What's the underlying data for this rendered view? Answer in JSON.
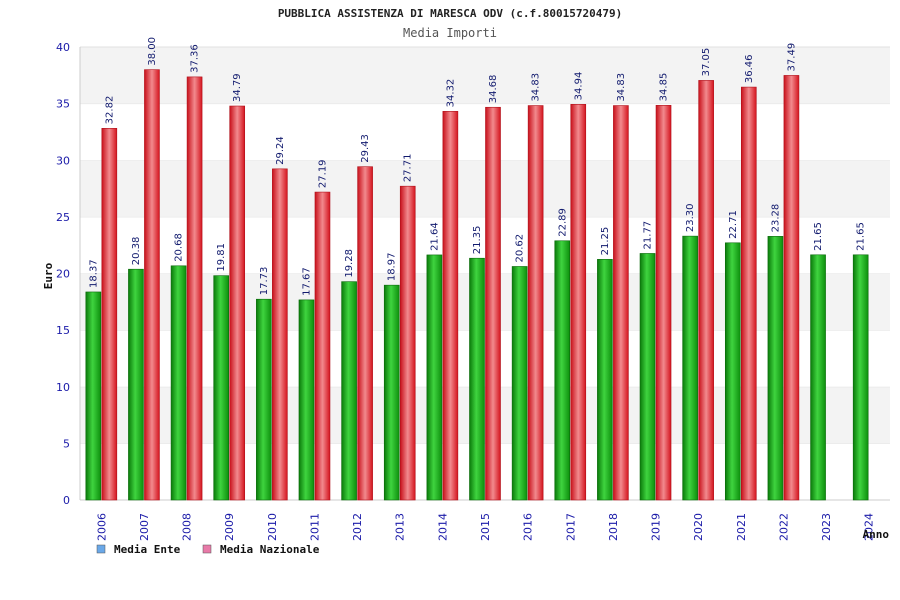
{
  "chart_data": {
    "type": "bar",
    "title": "PUBBLICA ASSISTENZA DI MARESCA ODV (c.f.80015720479)",
    "subtitle": "Media Importi",
    "xlabel": "Anno",
    "ylabel": "Euro",
    "ylim": [
      0,
      40
    ],
    "yticks": [
      "0",
      "5",
      "10",
      "15",
      "20",
      "25",
      "30",
      "35",
      "40"
    ],
    "grid": "horizontal bands",
    "legend_position": "bottom-left",
    "categories": [
      "2006",
      "2007",
      "2008",
      "2009",
      "2010",
      "2011",
      "2012",
      "2013",
      "2014",
      "2015",
      "2016",
      "2017",
      "2018",
      "2019",
      "2020",
      "2021",
      "2022",
      "2023",
      "2024"
    ],
    "series": [
      {
        "name": "Media Ente",
        "color": "#11a411",
        "legend_color": "#6aa8e8",
        "values": [
          18.37,
          20.38,
          20.68,
          19.81,
          17.73,
          17.67,
          19.28,
          18.97,
          21.64,
          21.35,
          20.62,
          22.89,
          21.25,
          21.77,
          23.3,
          22.71,
          23.28,
          21.65,
          21.65
        ],
        "labels": [
          "18.37",
          "20.38",
          "20.68",
          "19.81",
          "17.73",
          "17.67",
          "19.28",
          "18.97",
          "21.64",
          "21.35",
          "20.62",
          "22.89",
          "21.25",
          "21.77",
          "23.30",
          "22.71",
          "23.28",
          "21.65",
          "21.65"
        ]
      },
      {
        "name": "Media Nazionale",
        "color": "#e8202a",
        "legend_color": "#e87aa8",
        "values": [
          32.82,
          38.0,
          37.36,
          34.79,
          29.24,
          27.19,
          29.43,
          27.71,
          34.32,
          34.68,
          34.83,
          34.94,
          34.83,
          34.85,
          37.05,
          36.46,
          37.49,
          null,
          null
        ],
        "labels": [
          "32.82",
          "38.00",
          "37.36",
          "34.79",
          "29.24",
          "27.19",
          "29.43",
          "27.71",
          "34.32",
          "34.68",
          "34.83",
          "34.94",
          "34.83",
          "34.85",
          "37.05",
          "36.46",
          "37.49",
          "",
          ""
        ]
      }
    ]
  }
}
